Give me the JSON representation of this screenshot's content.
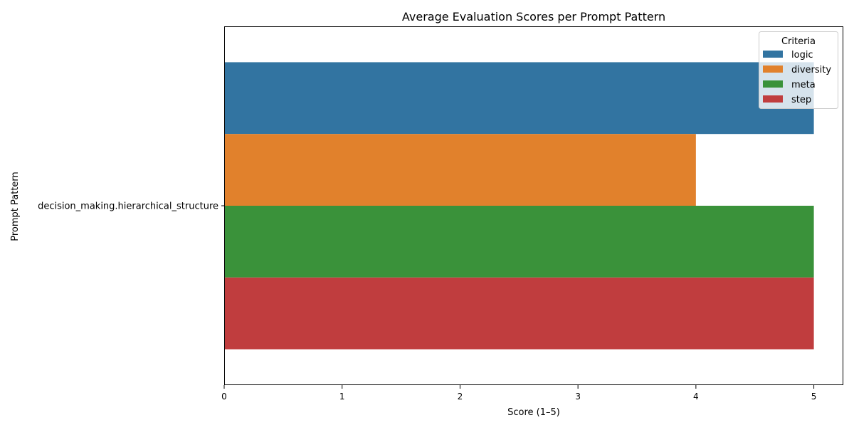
{
  "chart_data": {
    "type": "bar",
    "orientation": "horizontal",
    "title": "Average Evaluation Scores per Prompt Pattern",
    "xlabel": "Score (1–5)",
    "ylabel": "Prompt Pattern",
    "categories": [
      "decision_making.hierarchical_structure"
    ],
    "series": [
      {
        "name": "logic",
        "values": [
          5
        ],
        "color": "#3274a1"
      },
      {
        "name": "diversity",
        "values": [
          4
        ],
        "color": "#e1812c"
      },
      {
        "name": "meta",
        "values": [
          5
        ],
        "color": "#3a923a"
      },
      {
        "name": "step",
        "values": [
          5
        ],
        "color": "#c03d3e"
      }
    ],
    "xlim": [
      0,
      5.25
    ],
    "xticks": [
      "0",
      "1",
      "2",
      "3",
      "4",
      "5"
    ],
    "grid": false,
    "legend": {
      "title": "Criteria",
      "placement": "top-right"
    }
  }
}
